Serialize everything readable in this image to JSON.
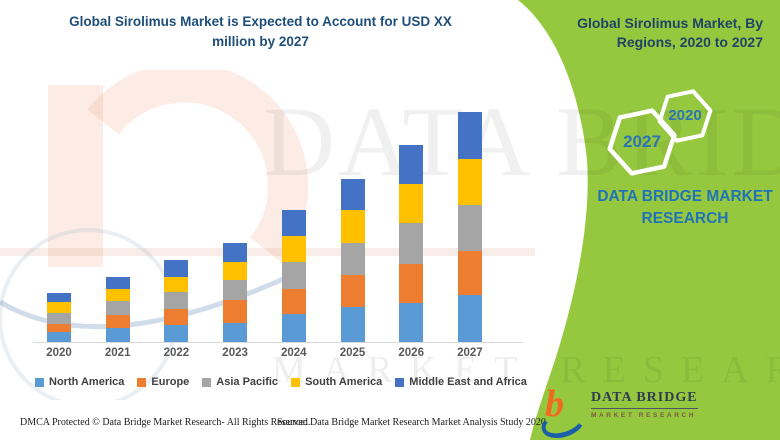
{
  "header": {
    "title_lines": [
      "Global Sirolimus Market is Expected to Account for USD XX",
      "million by 2027"
    ]
  },
  "side_panel": {
    "title_lines": [
      "Global Sirolimus Market, By",
      "Regions, 2020 to 2027"
    ],
    "hexagons": [
      {
        "year": "2027"
      },
      {
        "year": "2020"
      }
    ],
    "brand_caption_lines": [
      "DATA BRIDGE MARKET",
      "RESEARCH"
    ],
    "accent_green": "#95C83E",
    "year_text_color": "#2E74B5",
    "caption_color": "#2173B9"
  },
  "logo": {
    "name": "DATA BRIDGE",
    "subtitle": "MARKET RESEARCH",
    "glyph": "b-swoosh-icon",
    "orange": "#F16A21",
    "blue": "#1B5FA8"
  },
  "watermark": {
    "line1": "DATA BRIDGE",
    "line2": "MARKET RESEARCH"
  },
  "footer": {
    "dmca": "DMCA Protected © Data Bridge Market Research- All Rights Reserved.",
    "source": "Source: Data Bridge Market Research Market Analysis Study 2020"
  },
  "chart_data": {
    "type": "bar",
    "stacked": true,
    "title": "Global Sirolimus Market is Expected to Account for USD XX million by 2027",
    "xlabel": "",
    "ylabel": "",
    "units": "USD million (values shown as XX — unlabeled; series values are proportional estimates, 1 unit = 1 px)",
    "grid": false,
    "legend_position": "bottom",
    "categories": [
      "2020",
      "2021",
      "2022",
      "2023",
      "2024",
      "2025",
      "2026",
      "2027"
    ],
    "series": [
      {
        "name": "North America",
        "color": "#5B9BD5",
        "values": [
          10.0,
          14.4,
          17.4,
          19.0,
          27.7,
          35.0,
          39.0,
          46.7
        ]
      },
      {
        "name": "Europe",
        "color": "#ED7D31",
        "values": [
          8.4,
          13.0,
          16.0,
          22.7,
          25.7,
          31.7,
          39.4,
          44.3
        ]
      },
      {
        "name": "Asia Pacific",
        "color": "#A5A5A5",
        "values": [
          10.6,
          13.6,
          16.6,
          20.0,
          26.7,
          32.3,
          40.6,
          45.7
        ]
      },
      {
        "name": "South America",
        "color": "#FFC000",
        "values": [
          11.0,
          12.4,
          15.0,
          18.3,
          25.7,
          32.7,
          39.4,
          46.7
        ]
      },
      {
        "name": "Middle East and Africa",
        "color": "#4472C4",
        "values": [
          9.0,
          11.6,
          16.7,
          19.0,
          26.0,
          31.7,
          38.3,
          46.6
        ]
      }
    ],
    "totals_estimate": [
      49.0,
      65.0,
      81.7,
      99.0,
      131.8,
      163.4,
      196.7,
      230.0
    ]
  }
}
